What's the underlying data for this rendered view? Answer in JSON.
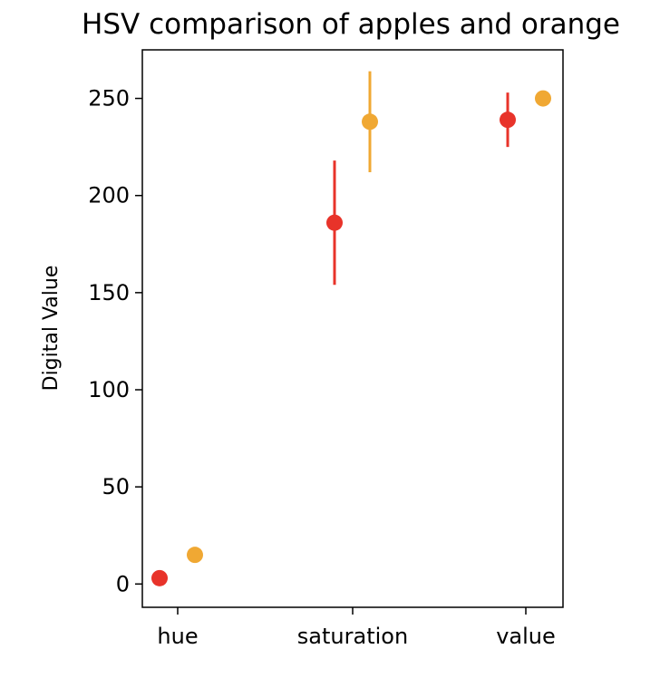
{
  "chart_data": {
    "type": "scatter",
    "title": "HSV comparison of apples and orange",
    "xlabel": "",
    "ylabel": "Digital Value",
    "categories": [
      "hue",
      "saturation",
      "value"
    ],
    "ylim": [
      -12,
      275
    ],
    "yticks": [
      0,
      50,
      100,
      150,
      200,
      250
    ],
    "grid": false,
    "legend": "none",
    "series": [
      {
        "name": "apples",
        "color": "#e8332a",
        "values": [
          3,
          186,
          239
        ],
        "errors": [
          0,
          32,
          14
        ]
      },
      {
        "name": "orange",
        "color": "#f0a833",
        "values": [
          15,
          238,
          250
        ],
        "errors": [
          0,
          26,
          0
        ]
      }
    ]
  }
}
